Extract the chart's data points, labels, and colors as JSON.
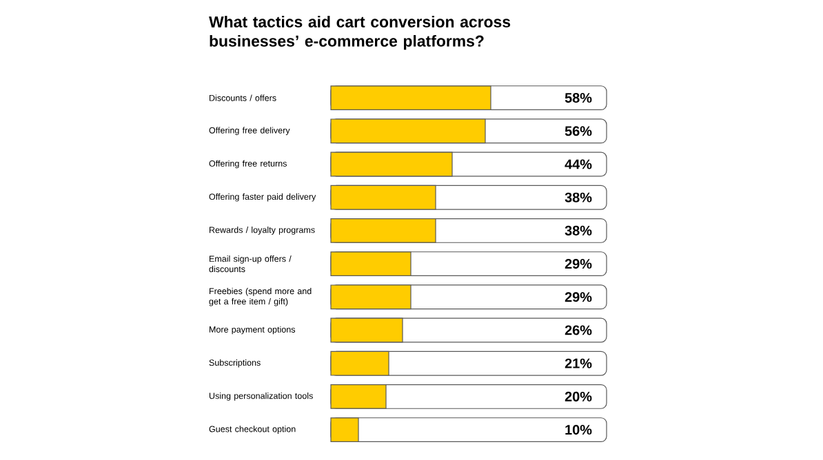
{
  "chart_data": {
    "type": "bar",
    "orientation": "horizontal",
    "title": "What tactics aid cart conversion across businesses’ e-commerce platforms?",
    "categories": [
      "Discounts / offers",
      "Offering free delivery",
      "Offering free returns",
      "Offering faster paid delivery",
      "Rewards / loyalty programs",
      "Email sign-up offers / discounts",
      "Freebies (spend more and get a free item / gift)",
      "More payment options",
      "Subscriptions",
      "Using personalization tools",
      "Guest checkout option"
    ],
    "values": [
      58,
      56,
      44,
      38,
      38,
      29,
      29,
      26,
      21,
      20,
      10
    ],
    "value_labels": [
      "58%",
      "56%",
      "44%",
      "38%",
      "38%",
      "29%",
      "29%",
      "26%",
      "21%",
      "20%",
      "10%"
    ],
    "color": "#ffcc00",
    "xlim": [
      0,
      100
    ],
    "tick_labels": "y"
  }
}
